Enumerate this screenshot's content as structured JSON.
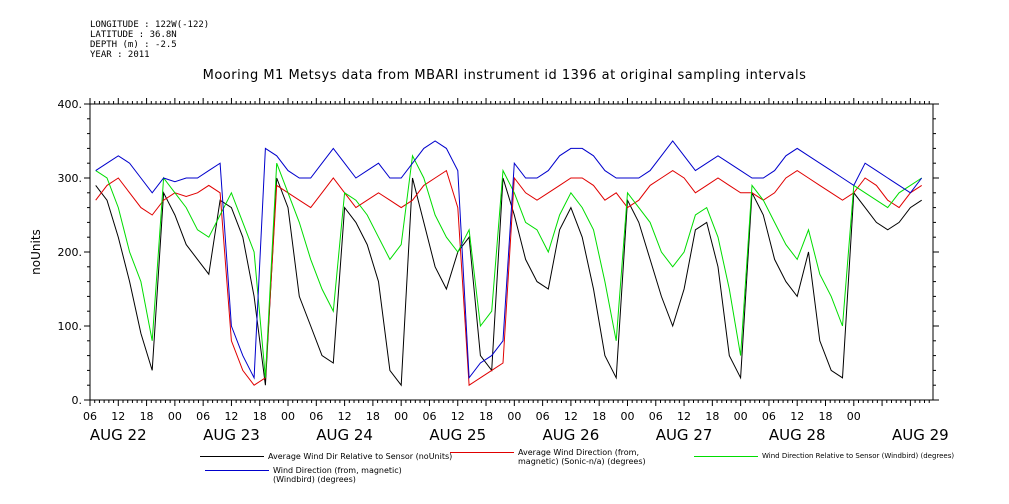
{
  "meta": {
    "longitude": "LONGITUDE : 122W(-122)",
    "latitude": "LATITUDE : 36.8N",
    "depth": "DEPTH (m) : -2.5",
    "year": "YEAR : 2011"
  },
  "chart_data": {
    "type": "line",
    "title": "Mooring M1 Metsys data from MBARI instrument id 1396 at original sampling intervals",
    "xlabel": "",
    "ylabel": "noUnits",
    "ylim": [
      0,
      400
    ],
    "yticks": [
      0,
      100,
      200,
      300,
      400
    ],
    "ytick_labels": [
      "0.",
      "100.",
      "200.",
      "300.",
      "400."
    ],
    "xlim_days": [
      21.75,
      29.2
    ],
    "hour_ticks": [
      "06",
      "12",
      "18",
      "00",
      "06",
      "12",
      "18",
      "00",
      "06",
      "12",
      "18",
      "00",
      "06",
      "12",
      "18",
      "00",
      "06",
      "12",
      "18",
      "00",
      "06",
      "12",
      "18",
      "00",
      "06",
      "12",
      "18",
      "00"
    ],
    "day_labels": [
      "AUG 22",
      "AUG 23",
      "AUG 24",
      "AUG 25",
      "AUG 26",
      "AUG 27",
      "AUG 28",
      "AUG 29"
    ],
    "grid": false,
    "legend_placement": "bottom",
    "series": [
      {
        "name": "Average Wind Dir Relative to Sensor (noUnits)",
        "color": "#000000",
        "x": [
          21.8,
          21.9,
          22.0,
          22.1,
          22.2,
          22.3,
          22.4,
          22.5,
          22.6,
          22.7,
          22.8,
          22.9,
          23.0,
          23.1,
          23.2,
          23.3,
          23.4,
          23.5,
          23.6,
          23.7,
          23.8,
          23.9,
          24.0,
          24.1,
          24.2,
          24.3,
          24.4,
          24.5,
          24.6,
          24.7,
          24.8,
          24.9,
          25.0,
          25.1,
          25.2,
          25.3,
          25.4,
          25.5,
          25.6,
          25.7,
          25.8,
          25.9,
          26.0,
          26.1,
          26.2,
          26.3,
          26.4,
          26.5,
          26.6,
          26.7,
          26.8,
          26.9,
          27.0,
          27.1,
          27.2,
          27.3,
          27.4,
          27.5,
          27.6,
          27.7,
          27.8,
          27.9,
          28.0,
          28.1,
          28.2,
          28.3,
          28.4,
          28.5,
          28.6,
          28.7,
          28.8,
          28.9,
          29.0,
          29.1
        ],
        "y": [
          290,
          270,
          220,
          160,
          90,
          40,
          280,
          250,
          210,
          190,
          170,
          270,
          260,
          220,
          140,
          20,
          300,
          260,
          140,
          100,
          60,
          50,
          260,
          240,
          210,
          160,
          40,
          20,
          300,
          240,
          180,
          150,
          200,
          220,
          60,
          40,
          300,
          250,
          190,
          160,
          150,
          230,
          260,
          220,
          150,
          60,
          30,
          270,
          240,
          190,
          140,
          100,
          150,
          230,
          240,
          180,
          60,
          30,
          280,
          250,
          190,
          160,
          140,
          200,
          80,
          40,
          30,
          280,
          260,
          240,
          230,
          240,
          260,
          270
        ]
      },
      {
        "name": "Average Wind Direction (from, magnetic) (Sonic-n/a) (degrees)",
        "color": "#e00000",
        "x": [
          21.8,
          21.9,
          22.0,
          22.1,
          22.2,
          22.3,
          22.4,
          22.5,
          22.6,
          22.7,
          22.8,
          22.9,
          23.0,
          23.1,
          23.2,
          23.3,
          23.4,
          23.5,
          23.6,
          23.7,
          23.8,
          23.9,
          24.0,
          24.1,
          24.2,
          24.3,
          24.4,
          24.5,
          24.6,
          24.7,
          24.8,
          24.9,
          25.0,
          25.1,
          25.2,
          25.3,
          25.4,
          25.5,
          25.6,
          25.7,
          25.8,
          25.9,
          26.0,
          26.1,
          26.2,
          26.3,
          26.4,
          26.5,
          26.6,
          26.7,
          26.8,
          26.9,
          27.0,
          27.1,
          27.2,
          27.3,
          27.4,
          27.5,
          27.6,
          27.7,
          27.8,
          27.9,
          28.0,
          28.1,
          28.2,
          28.3,
          28.4,
          28.5,
          28.6,
          28.7,
          28.8,
          28.9,
          29.0,
          29.1
        ],
        "y": [
          270,
          290,
          300,
          280,
          260,
          250,
          270,
          280,
          275,
          280,
          290,
          280,
          80,
          40,
          20,
          30,
          290,
          280,
          270,
          260,
          280,
          300,
          280,
          260,
          270,
          280,
          270,
          260,
          270,
          290,
          300,
          310,
          260,
          20,
          30,
          40,
          50,
          300,
          280,
          270,
          280,
          290,
          300,
          300,
          290,
          270,
          280,
          260,
          270,
          290,
          300,
          310,
          300,
          280,
          290,
          300,
          290,
          280,
          280,
          270,
          280,
          300,
          310,
          300,
          290,
          280,
          270,
          280,
          300,
          290,
          270,
          260,
          280,
          290
        ]
      },
      {
        "name": "Wind Direction Relative to Sensor (Windbird) (degrees)",
        "color": "#00dd00",
        "x": [
          21.8,
          21.9,
          22.0,
          22.1,
          22.2,
          22.3,
          22.4,
          22.5,
          22.6,
          22.7,
          22.8,
          22.9,
          23.0,
          23.1,
          23.2,
          23.3,
          23.4,
          23.5,
          23.6,
          23.7,
          23.8,
          23.9,
          24.0,
          24.1,
          24.2,
          24.3,
          24.4,
          24.5,
          24.6,
          24.7,
          24.8,
          24.9,
          25.0,
          25.1,
          25.2,
          25.3,
          25.4,
          25.5,
          25.6,
          25.7,
          25.8,
          25.9,
          26.0,
          26.1,
          26.2,
          26.3,
          26.4,
          26.5,
          26.6,
          26.7,
          26.8,
          26.9,
          27.0,
          27.1,
          27.2,
          27.3,
          27.4,
          27.5,
          27.6,
          27.7,
          27.8,
          27.9,
          28.0,
          28.1,
          28.2,
          28.3,
          28.4,
          28.5,
          28.6,
          28.7,
          28.8,
          28.9,
          29.0,
          29.1
        ],
        "y": [
          310,
          300,
          260,
          200,
          160,
          80,
          300,
          280,
          260,
          230,
          220,
          250,
          280,
          240,
          200,
          30,
          320,
          280,
          240,
          190,
          150,
          120,
          280,
          270,
          250,
          220,
          190,
          210,
          330,
          300,
          250,
          220,
          200,
          230,
          100,
          120,
          310,
          280,
          240,
          230,
          200,
          250,
          280,
          260,
          230,
          160,
          80,
          280,
          260,
          240,
          200,
          180,
          200,
          250,
          260,
          220,
          150,
          60,
          290,
          270,
          240,
          210,
          190,
          230,
          170,
          140,
          100,
          290,
          280,
          270,
          260,
          280,
          290,
          300
        ]
      },
      {
        "name": "Wind Direction (from, magnetic) (Windbird) (degrees)",
        "color": "#0000cc",
        "x": [
          21.8,
          21.9,
          22.0,
          22.1,
          22.2,
          22.3,
          22.4,
          22.5,
          22.6,
          22.7,
          22.8,
          22.9,
          23.0,
          23.1,
          23.2,
          23.3,
          23.4,
          23.5,
          23.6,
          23.7,
          23.8,
          23.9,
          24.0,
          24.1,
          24.2,
          24.3,
          24.4,
          24.5,
          24.6,
          24.7,
          24.8,
          24.9,
          25.0,
          25.1,
          25.2,
          25.3,
          25.4,
          25.5,
          25.6,
          25.7,
          25.8,
          25.9,
          26.0,
          26.1,
          26.2,
          26.3,
          26.4,
          26.5,
          26.6,
          26.7,
          26.8,
          26.9,
          27.0,
          27.1,
          27.2,
          27.3,
          27.4,
          27.5,
          27.6,
          27.7,
          27.8,
          27.9,
          28.0,
          28.1,
          28.2,
          28.3,
          28.4,
          28.5,
          28.6,
          28.7,
          28.8,
          28.9,
          29.0,
          29.1
        ],
        "y": [
          310,
          320,
          330,
          320,
          300,
          280,
          300,
          295,
          300,
          300,
          310,
          320,
          100,
          60,
          30,
          340,
          330,
          310,
          300,
          300,
          320,
          340,
          320,
          300,
          310,
          320,
          300,
          300,
          320,
          340,
          350,
          340,
          310,
          30,
          50,
          60,
          80,
          320,
          300,
          300,
          310,
          330,
          340,
          340,
          330,
          310,
          300,
          300,
          300,
          310,
          330,
          350,
          330,
          310,
          320,
          330,
          320,
          310,
          300,
          300,
          310,
          330,
          340,
          330,
          320,
          310,
          300,
          290,
          320,
          310,
          300,
          290,
          280,
          300
        ]
      }
    ]
  },
  "legend": {
    "item1": "Average Wind Dir Relative to Sensor (noUnits)",
    "item2": "Average Wind Direction (from, magnetic) (Sonic-n/a) (degrees)",
    "item3": "Wind Direction Relative to Sensor (Windbird) (degrees)",
    "item4": "Wind Direction (from, magnetic) (Windbird) (degrees)"
  }
}
